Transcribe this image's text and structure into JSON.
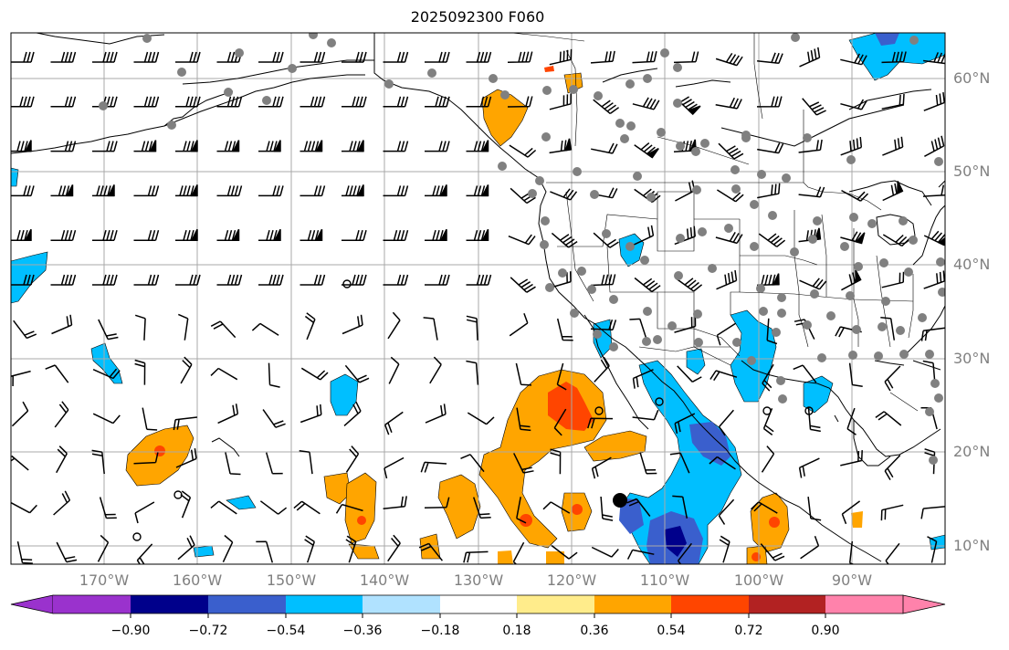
{
  "title": "2025092300 F060",
  "lat_labels": [
    "60°N",
    "50°N",
    "40°N",
    "30°N",
    "20°N",
    "10°N"
  ],
  "lon_labels": [
    "170°W",
    "160°W",
    "150°W",
    "140°W",
    "130°W",
    "120°W",
    "110°W",
    "100°W",
    "90°W"
  ],
  "colorbar": {
    "ticks": [
      "−0.90",
      "−0.72",
      "−0.54",
      "−0.36",
      "−0.18",
      "0.18",
      "0.36",
      "0.54",
      "0.72",
      "0.90"
    ],
    "colors": [
      "#9a32cd",
      "#00008b",
      "#3a5fcd",
      "#00bfff",
      "#b0e2ff",
      "#ffffff",
      "#ffec8b",
      "#ffa500",
      "#ff4500",
      "#b22222",
      "#ff82ab"
    ]
  }
}
